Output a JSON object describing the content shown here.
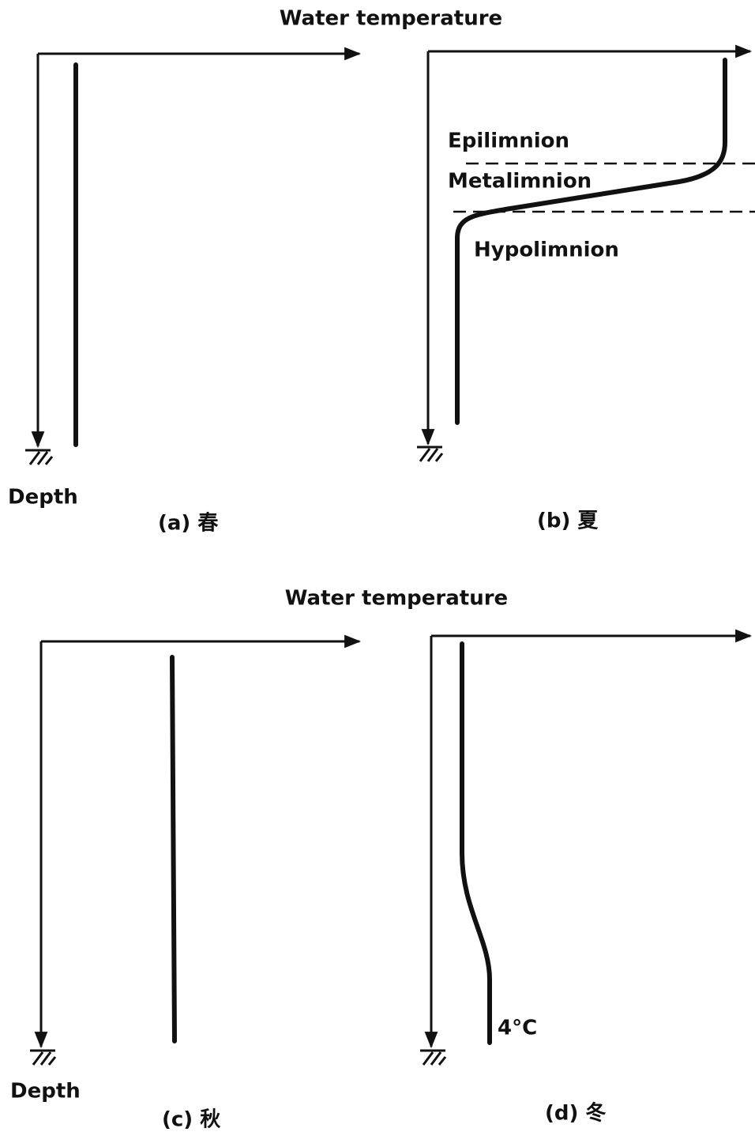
{
  "rows": [
    {
      "x_axis_label": "Water temperature",
      "y_axis_label": "Depth",
      "panels": [
        {
          "caption": "(a) 春"
        },
        {
          "caption": "(b) 夏",
          "layers": [
            "Epilimnion",
            "Metalimnion",
            "Hypolimnion"
          ]
        }
      ]
    },
    {
      "x_axis_label": "Water temperature",
      "y_axis_label": "Depth",
      "panels": [
        {
          "caption": "(c) 秋"
        },
        {
          "caption": "(d) 冬",
          "annotation": "4°C"
        }
      ]
    }
  ]
}
